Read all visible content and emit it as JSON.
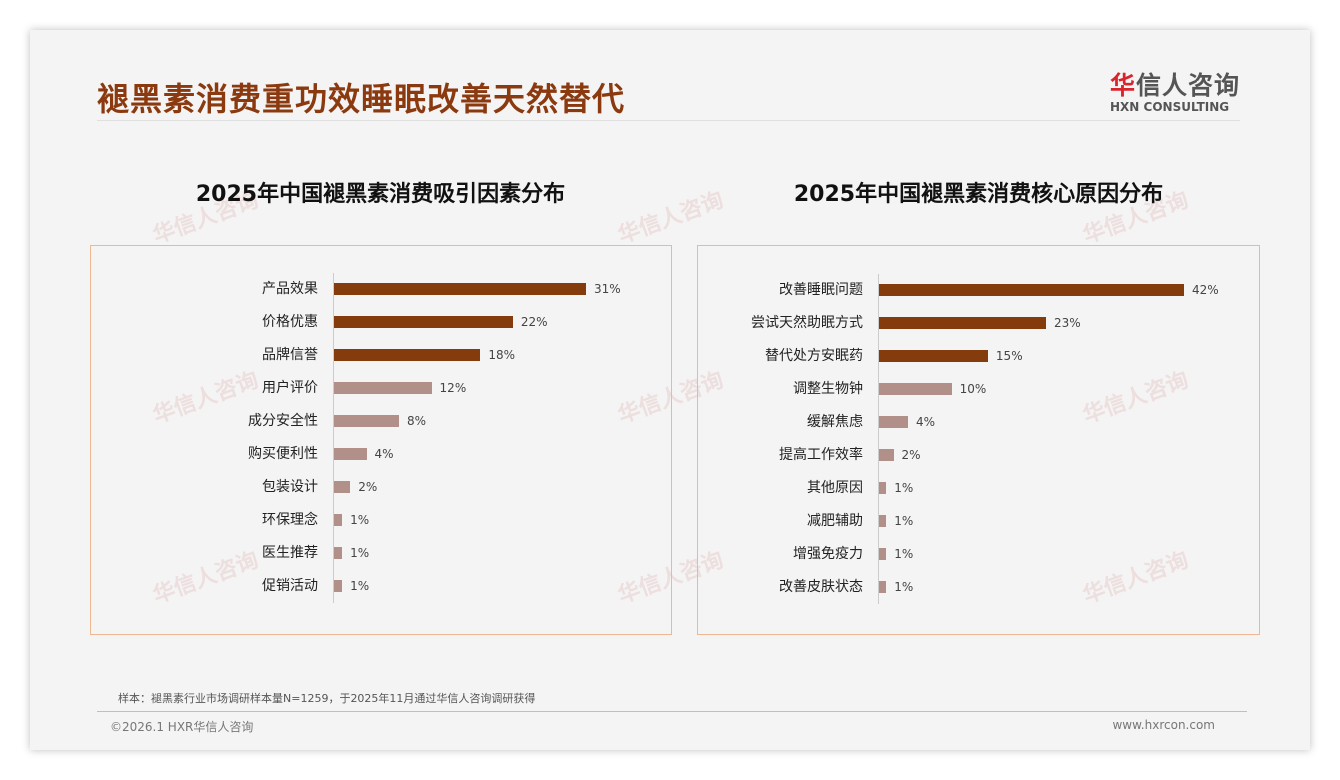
{
  "header": {
    "title": "褪黑素消费重功效睡眠改善天然替代",
    "logo_cn_red": "华",
    "logo_cn": "信人咨询",
    "logo_en": "HXN CONSULTING"
  },
  "watermark": "华信人咨询",
  "colors": {
    "dark": "#843c0c",
    "light": "#b09088",
    "accent": "#8b3a0f"
  },
  "chart_data": [
    {
      "type": "bar",
      "orientation": "horizontal",
      "title": "2025年中国褪黑素消费吸引因素分布",
      "categories": [
        "产品效果",
        "价格优惠",
        "品牌信誉",
        "用户评价",
        "成分安全性",
        "购买便利性",
        "包装设计",
        "环保理念",
        "医生推荐",
        "促销活动"
      ],
      "values": [
        31,
        22,
        18,
        12,
        8,
        4,
        2,
        1,
        1,
        1
      ],
      "labels": [
        "31%",
        "22%",
        "18%",
        "12%",
        "8%",
        "4%",
        "2%",
        "1%",
        "1%",
        "1%"
      ],
      "highlight_top": 3,
      "unit": "%"
    },
    {
      "type": "bar",
      "orientation": "horizontal",
      "title": "2025年中国褪黑素消费核心原因分布",
      "categories": [
        "改善睡眠问题",
        "尝试天然助眠方式",
        "替代处方安眠药",
        "调整生物钟",
        "缓解焦虑",
        "提高工作效率",
        "其他原因",
        "减肥辅助",
        "增强免疫力",
        "改善皮肤状态"
      ],
      "values": [
        42,
        23,
        15,
        10,
        4,
        2,
        1,
        1,
        1,
        1
      ],
      "labels": [
        "42%",
        "23%",
        "15%",
        "10%",
        "4%",
        "2%",
        "1%",
        "1%",
        "1%",
        "1%"
      ],
      "highlight_top": 3,
      "unit": "%"
    }
  ],
  "footer": {
    "note": "样本：褪黑素行业市场调研样本量N=1259，于2025年11月通过华信人咨询调研获得",
    "copyright": "©2026.1 HXR华信人咨询",
    "website": "www.hxrcon.com"
  }
}
